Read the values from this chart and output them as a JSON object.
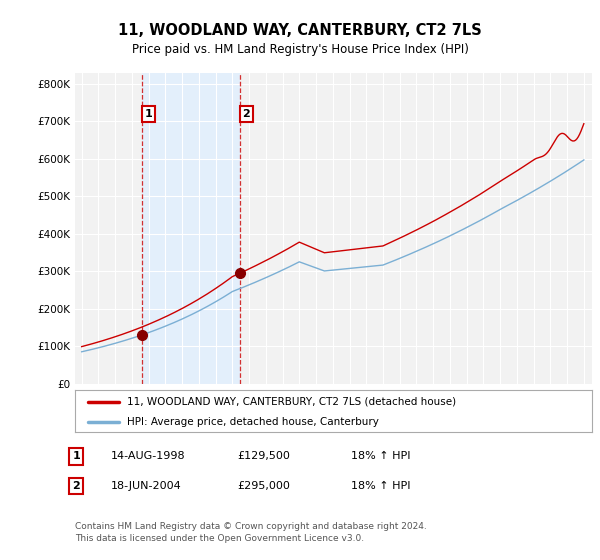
{
  "title": "11, WOODLAND WAY, CANTERBURY, CT2 7LS",
  "subtitle": "Price paid vs. HM Land Registry's House Price Index (HPI)",
  "ylabel_ticks": [
    "£0",
    "£100K",
    "£200K",
    "£300K",
    "£400K",
    "£500K",
    "£600K",
    "£700K",
    "£800K"
  ],
  "ytick_values": [
    0,
    100000,
    200000,
    300000,
    400000,
    500000,
    600000,
    700000,
    800000
  ],
  "ylim": [
    0,
    830000
  ],
  "sale1_date": "14-AUG-1998",
  "sale1_price": 129500,
  "sale1_hpi": "18% ↑ HPI",
  "sale1_year": 1998.62,
  "sale2_date": "18-JUN-2004",
  "sale2_price": 295000,
  "sale2_hpi": "18% ↑ HPI",
  "sale2_year": 2004.46,
  "line1_color": "#cc0000",
  "line2_color": "#7bafd4",
  "marker_color": "#880000",
  "vline_color": "#cc0000",
  "shade_color": "#ddeeff",
  "legend_line1": "11, WOODLAND WAY, CANTERBURY, CT2 7LS (detached house)",
  "legend_line2": "HPI: Average price, detached house, Canterbury",
  "footnote": "Contains HM Land Registry data © Crown copyright and database right 2024.\nThis data is licensed under the Open Government Licence v3.0.",
  "background_color": "#ffffff",
  "plot_bg_color": "#f2f2f2"
}
